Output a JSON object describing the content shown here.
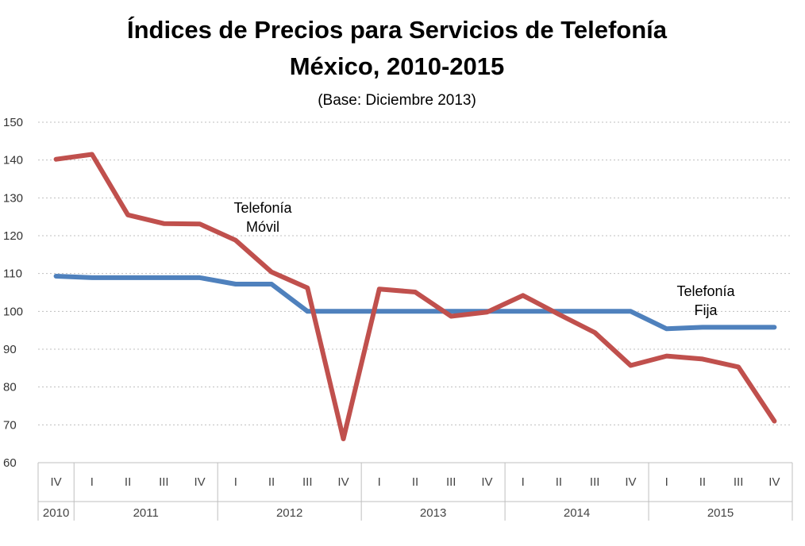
{
  "chart_data": {
    "type": "line",
    "title": "Índices de Precios para Servicios de Telefonía",
    "title_line2": "México, 2010-2015",
    "subtitle": "(Base: Diciembre 2013)",
    "ylim": [
      60,
      150
    ],
    "yticks": [
      "60",
      "70",
      "80",
      "90",
      "100",
      "110",
      "120",
      "130",
      "140",
      "150"
    ],
    "grid": "horizontal dotted",
    "quarters": [
      "IV",
      "I",
      "II",
      "III",
      "IV",
      "I",
      "II",
      "III",
      "IV",
      "I",
      "II",
      "III",
      "IV",
      "I",
      "II",
      "III",
      "IV",
      "I",
      "II",
      "III",
      "IV"
    ],
    "years": [
      {
        "label": "2010",
        "span": 1
      },
      {
        "label": "2011",
        "span": 4
      },
      {
        "label": "2012",
        "span": 4
      },
      {
        "label": "2013",
        "span": 4
      },
      {
        "label": "2014",
        "span": 4
      },
      {
        "label": "2015",
        "span": 4
      }
    ],
    "series": [
      {
        "name": "Telefonía Fija",
        "color": "#4f81bd",
        "annotation_line1": "Telefonía",
        "annotation_line2": "Fija",
        "values": [
          109.3,
          108.9,
          108.9,
          108.9,
          108.9,
          107.2,
          107.2,
          100,
          100,
          100,
          100,
          100,
          100,
          100,
          100,
          100,
          100,
          95.4,
          95.8,
          95.8,
          95.8
        ]
      },
      {
        "name": "Telefonía Móvil",
        "color": "#c0504d",
        "annotation_line1": "Telefonía",
        "annotation_line2": "Móvil",
        "values": [
          140.2,
          141.5,
          125.5,
          123.2,
          123.1,
          118.8,
          110.4,
          106.2,
          66.3,
          105.9,
          105.1,
          98.7,
          99.8,
          104.2,
          99.2,
          94.4,
          85.7,
          88.2,
          87.4,
          85.3,
          71
        ]
      }
    ]
  }
}
